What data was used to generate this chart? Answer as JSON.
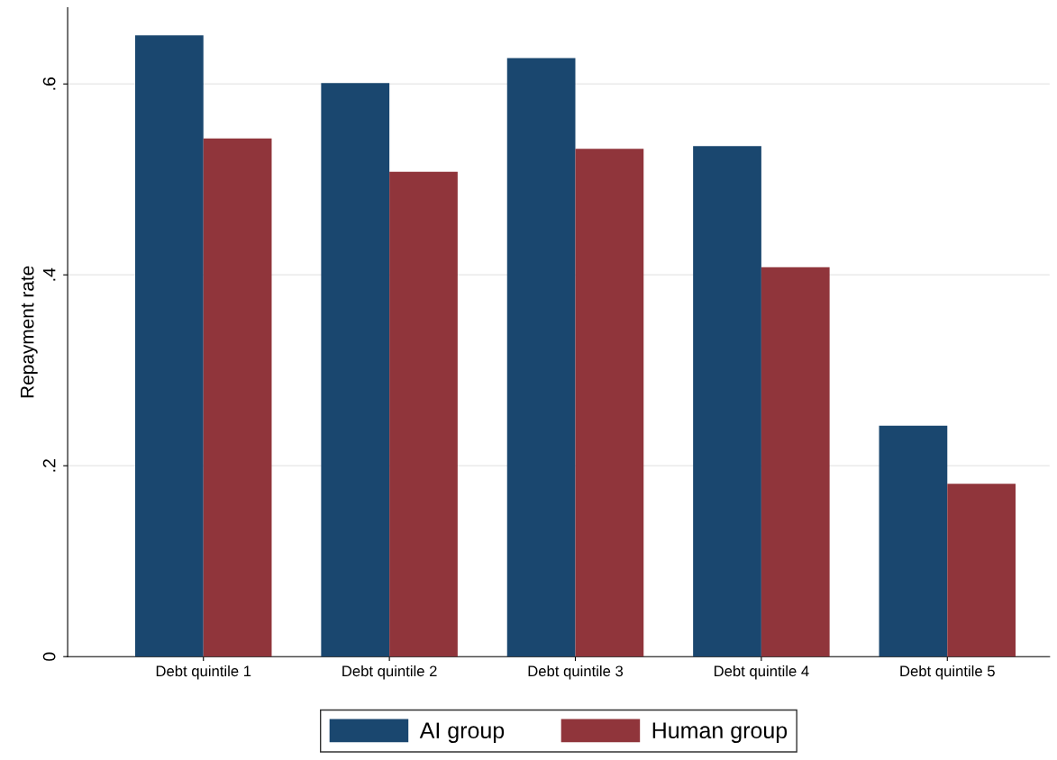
{
  "chart_data": {
    "type": "bar",
    "ylabel": "Repayment rate",
    "categories": [
      "Debt quintile 1",
      "Debt quintile 2",
      "Debt quintile 3",
      "Debt quintile 4",
      "Debt quintile 5"
    ],
    "series": [
      {
        "name": "AI group",
        "color": "#1a476f",
        "values": [
          0.651,
          0.601,
          0.627,
          0.535,
          0.242
        ]
      },
      {
        "name": "Human group",
        "color": "#90353b",
        "values": [
          0.543,
          0.508,
          0.532,
          0.408,
          0.181
        ]
      }
    ],
    "ylim": [
      0,
      0.68
    ],
    "yticks": [
      {
        "value": 0,
        "label": "0"
      },
      {
        "value": 0.2,
        "label": ".2"
      },
      {
        "value": 0.4,
        "label": ".4"
      },
      {
        "value": 0.6,
        "label": ".6"
      }
    ],
    "grid": "y",
    "legend": "bottom"
  }
}
